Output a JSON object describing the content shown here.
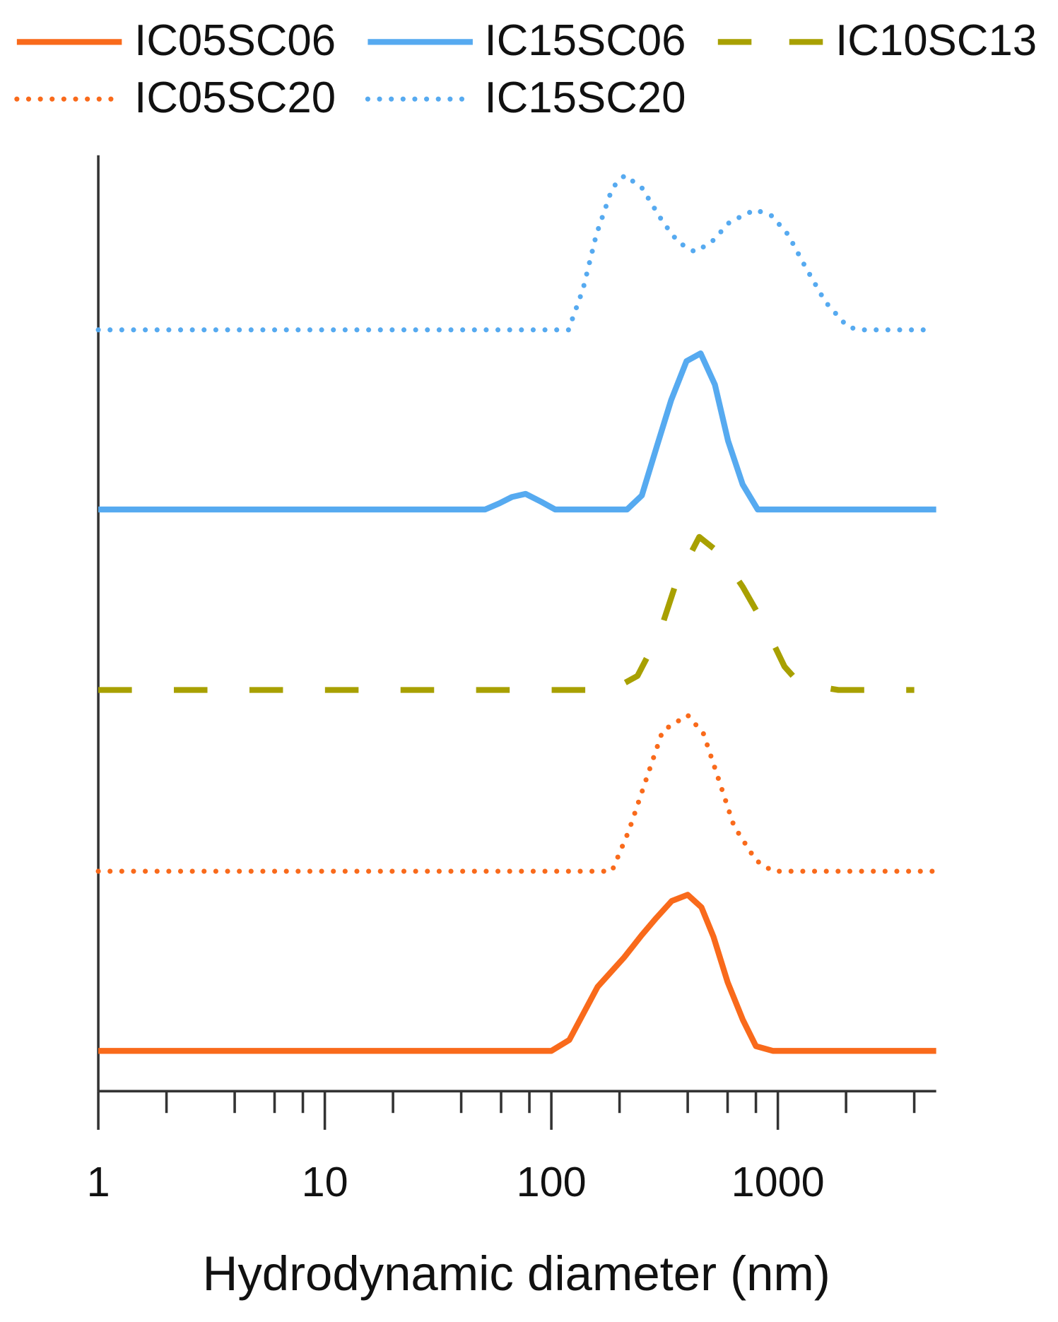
{
  "chart_data": {
    "type": "line",
    "x_label": "Hydrodynamic diameter (nm)",
    "xscale": "log",
    "xlim": [
      1,
      5000
    ],
    "xticks": [
      1,
      10,
      100,
      1000
    ],
    "xminor_ticks": [
      2,
      4,
      6,
      8,
      20,
      40,
      60,
      80,
      200,
      400,
      600,
      800,
      2000,
      4000
    ],
    "series": [
      {
        "name": "IC05SC06",
        "color": "#f96a1b",
        "style": "solid",
        "x": [
          1,
          100,
          120,
          160,
          210,
          250,
          290,
          340,
          400,
          460,
          520,
          600,
          700,
          800,
          950,
          5000
        ],
        "values": [
          0,
          0,
          7,
          41,
          60,
          74,
          85,
          96,
          100,
          92,
          73,
          44,
          20,
          3,
          0,
          0
        ]
      },
      {
        "name": "IC15SC06",
        "color": "#56aaf0",
        "style": "solid",
        "x": [
          1,
          51,
          59,
          67,
          77,
          90,
          104,
          216,
          251,
          293,
          338,
          395,
          456,
          527,
          603,
          699,
          815,
          5000
        ],
        "values": [
          0,
          0,
          4,
          8,
          10,
          5,
          0,
          0,
          9,
          41,
          70,
          95,
          100,
          80,
          44,
          16,
          0,
          0
        ]
      },
      {
        "name": "IC10SC13",
        "color": "#a8a000",
        "style": "dashed",
        "x": [
          1,
          185,
          240,
          300,
          360,
          450,
          560,
          700,
          870,
          1070,
          1250,
          1850,
          4000
        ],
        "values": [
          0,
          0,
          9,
          36,
          71,
          98,
          87,
          66,
          42,
          15,
          4,
          0,
          0
        ]
      },
      {
        "name": "IC05SC20",
        "color": "#f96a1b",
        "style": "dotted",
        "x": [
          1,
          185,
          220,
          250,
          310,
          400,
          470,
          550,
          640,
          800,
          950,
          5000
        ],
        "values": [
          0,
          0,
          26,
          50,
          90,
          100,
          88,
          58,
          29,
          7,
          0,
          0
        ]
      },
      {
        "name": "IC15SC20",
        "color": "#56aaf0",
        "style": "dotted",
        "x": [
          1,
          119,
          138,
          158,
          186,
          211,
          251,
          311,
          364,
          430,
          508,
          612,
          794,
          940,
          1110,
          1315,
          1620,
          2030,
          2300,
          4700
        ],
        "values": [
          0,
          0,
          26,
          61,
          91,
          99,
          91,
          69,
          56,
          50,
          56,
          69,
          77,
          73,
          61,
          41,
          18,
          2,
          0,
          0
        ]
      }
    ]
  }
}
